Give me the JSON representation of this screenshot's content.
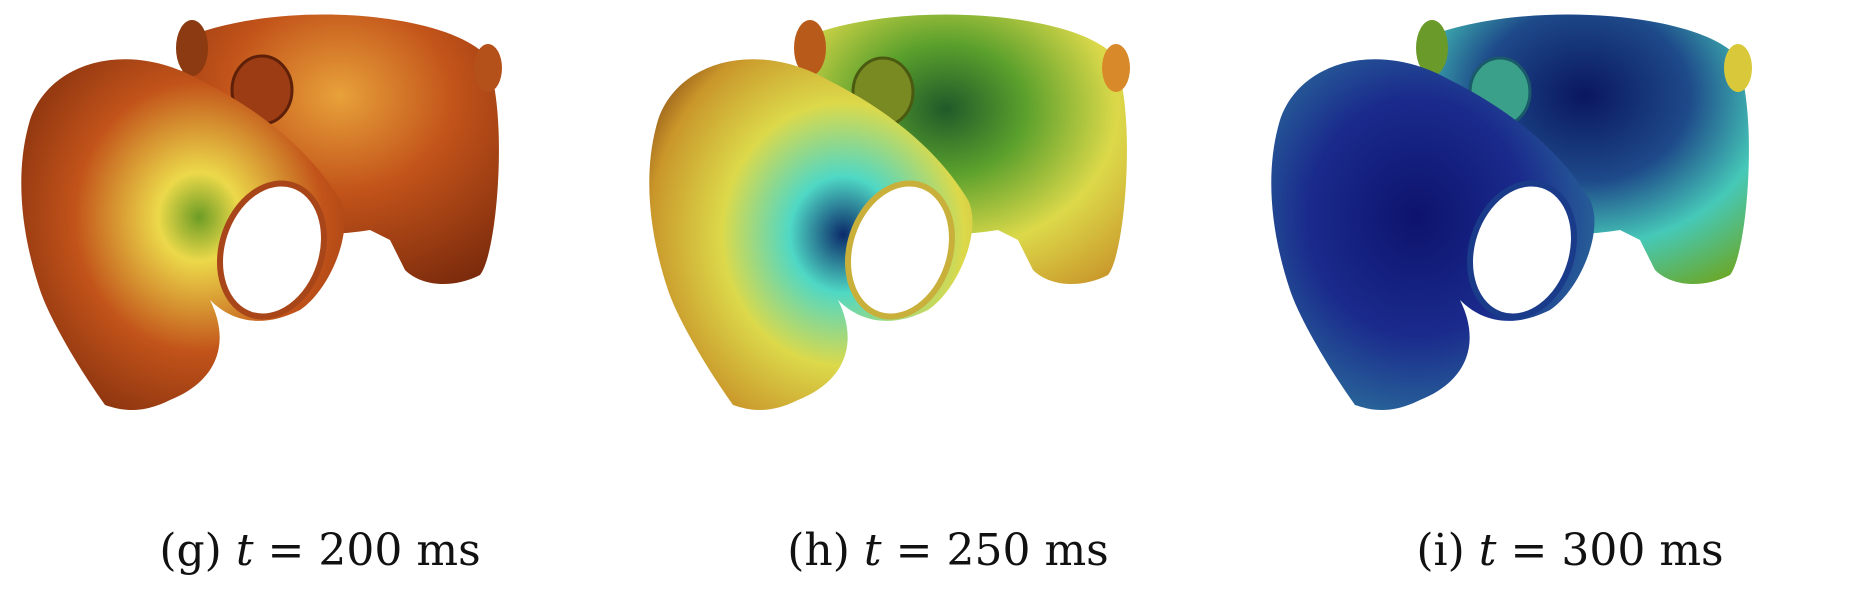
{
  "panels": [
    {
      "id": "g",
      "label": "(g)",
      "variable": "t",
      "relation": "=",
      "value": "200",
      "unit": "ms",
      "colors": {
        "base": "#c2531a",
        "dark": "#7a2a0c",
        "mid": "#e8a23a",
        "hot": "#ecd94a",
        "spot": "#6c9c25"
      }
    },
    {
      "id": "h",
      "label": "(h)",
      "variable": "t",
      "relation": "=",
      "value": "250",
      "unit": "ms",
      "colors": {
        "base": "#c9962a",
        "dark": "#7a3a10",
        "mid": "#dcd94a",
        "hot": "#4fd8c5",
        "spot": "#0b2a6a"
      }
    },
    {
      "id": "i",
      "label": "(i)",
      "variable": "t",
      "relation": "=",
      "value": "300",
      "unit": "ms",
      "colors": {
        "base": "#2ea08d",
        "dark": "#0a1660",
        "mid": "#46c9b8",
        "hot": "#1a2a8c",
        "spot": "#0d136d"
      }
    }
  ]
}
